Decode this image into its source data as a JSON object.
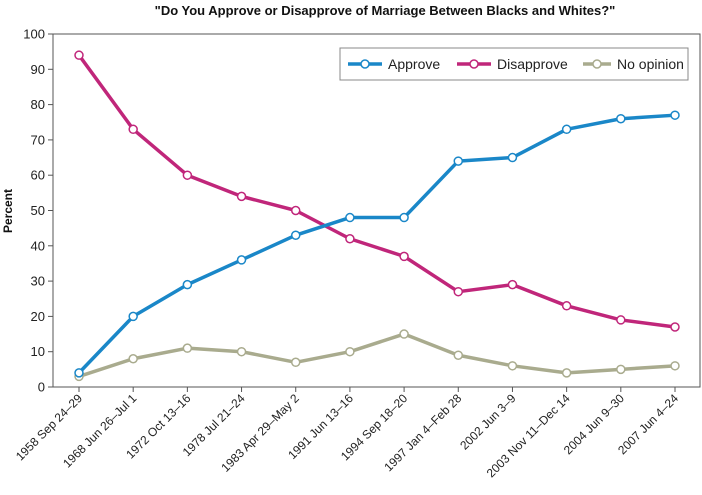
{
  "chart_data": {
    "type": "line",
    "title": "\"Do You Approve or Disapprove of Marriage Between Blacks and Whites?\"",
    "xlabel": "",
    "ylabel": "Percent",
    "ylim": [
      0,
      100
    ],
    "yticks": [
      0,
      10,
      20,
      30,
      40,
      50,
      60,
      70,
      80,
      90,
      100
    ],
    "grid": false,
    "legend_position": "top-right",
    "categories": [
      "1958 Sep 24–29",
      "1968 Jun 26–Jul 1",
      "1972 Oct 13–16",
      "1978 Jul 21–24",
      "1983 Apr 29–May 2",
      "1991 Jun 13–16",
      "1994 Sep 18–20",
      "1997 Jan 4–Feb 28",
      "2002 Jun 3–9",
      "2003 Nov 11–Dec 14",
      "2004 Jun 9–30",
      "2007 Jun 4–24"
    ],
    "series": [
      {
        "name": "Approve",
        "color": "#1a87c8",
        "values": [
          4,
          20,
          29,
          36,
          43,
          48,
          48,
          64,
          65,
          73,
          76,
          77
        ]
      },
      {
        "name": "Disapprove",
        "color": "#c0267a",
        "values": [
          94,
          73,
          60,
          54,
          50,
          42,
          37,
          27,
          29,
          23,
          19,
          17
        ]
      },
      {
        "name": "No opinion",
        "color": "#a9ab8e",
        "values": [
          3,
          8,
          11,
          10,
          7,
          10,
          15,
          9,
          6,
          4,
          5,
          6
        ]
      }
    ]
  }
}
